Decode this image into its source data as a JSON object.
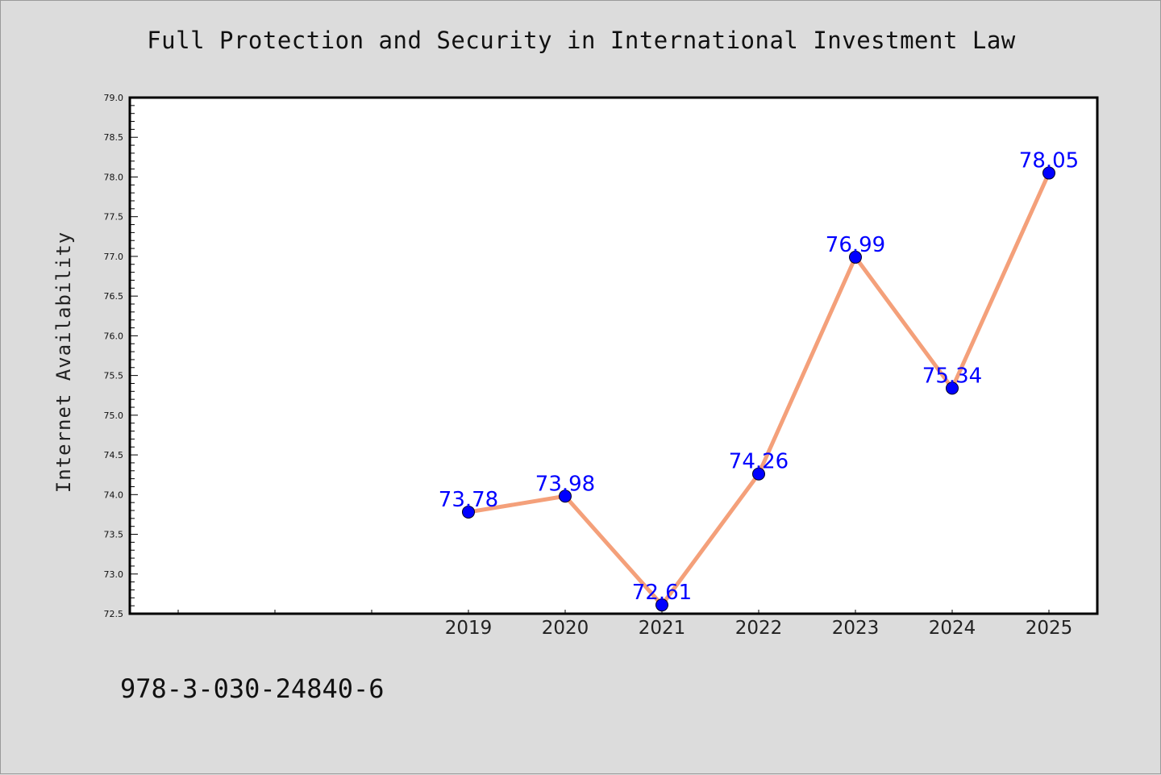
{
  "title": "Full Protection and Security in International Investment Law",
  "footer_text": "978-3-030-24840-6",
  "colors": {
    "line": "#f4a07a",
    "marker": "#0000ff",
    "data_label": "#0000ff",
    "plot_bg": "#ffffff",
    "page_bg": "#dcdcdc"
  },
  "chart_data": {
    "type": "line",
    "title": "Full Protection and Security in International Investment Law",
    "xlabel": "",
    "ylabel": "Internet Availability",
    "categories": [
      "2019",
      "2020",
      "2021",
      "2022",
      "2023",
      "2024",
      "2025"
    ],
    "series": [
      {
        "values": [
          73.78,
          73.98,
          72.61,
          74.26,
          76.99,
          75.34,
          78.05
        ]
      }
    ],
    "data_labels": [
      "73.78",
      "73.98",
      "72.61",
      "74.26",
      "76.99",
      "75.34",
      "78.05"
    ],
    "ylim": [
      72.5,
      79.0
    ],
    "y_ticks": [
      "72.5",
      "73.0",
      "73.5",
      "74.0",
      "74.5",
      "75.0",
      "75.5",
      "76.0",
      "76.5",
      "77.0",
      "77.5",
      "78.0",
      "78.5",
      "79.0"
    ],
    "grid": false,
    "legend": "none"
  }
}
